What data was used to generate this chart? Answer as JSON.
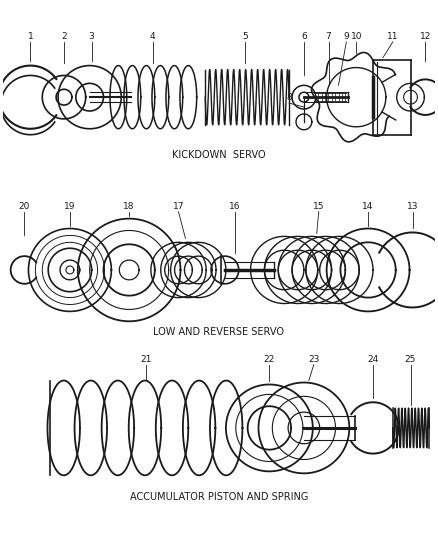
{
  "bg_color": "#ffffff",
  "line_color": "#1a1a1a",
  "section1_label": "KICKDOWN  SERVO",
  "section2_label": "LOW AND REVERSE SERVO",
  "section3_label": "ACCUMULATOR PISTON AND SPRING",
  "figsize": [
    4.38,
    5.33
  ],
  "dpi": 100
}
